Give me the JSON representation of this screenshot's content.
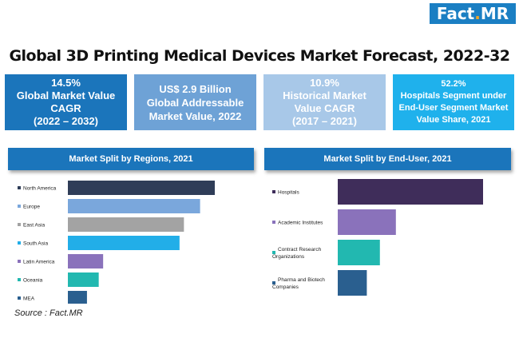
{
  "logo": {
    "part1": "Fact",
    "dot": ".",
    "part2": "MR"
  },
  "title": "Global 3D Printing Medical Devices Market Forecast, 2022-32",
  "kpis": [
    {
      "lines": [
        "14.5%",
        "Global Market Value",
        "CAGR",
        "(2022 – 2032)"
      ],
      "color": "#1b75bb"
    },
    {
      "lines": [
        "US$ 2.9 Billion",
        "Global Addressable",
        "Market Value, 2022"
      ],
      "color": "#6ea2d6"
    },
    {
      "lines": [
        "10.9%",
        "Historical Market",
        "Value CAGR",
        "(2017 – 2021)"
      ],
      "color": "#a8c8e8"
    },
    {
      "lines": [
        "52.2%",
        "Hospitals Segment under",
        "End-User Segment Market",
        "Value Share, 2021"
      ],
      "color": "#1fb1ec"
    }
  ],
  "chart_data": [
    {
      "type": "bar",
      "orientation": "horizontal",
      "title": "Market Split by Regions, 2021",
      "categories": [
        "North America",
        "Europe",
        "East Asia",
        "South Asia",
        "Latin America",
        "Oceania",
        "MEA"
      ],
      "values": [
        100,
        90,
        79,
        76,
        24,
        21,
        13
      ],
      "colors": [
        "#2f3d58",
        "#7aa7dc",
        "#a3a3a3",
        "#22aee8",
        "#8a72bb",
        "#22b8b0",
        "#2a5f8f"
      ],
      "grid": false,
      "legend": "none"
    },
    {
      "type": "bar",
      "orientation": "horizontal",
      "title": "Market Split by End-User, 2021",
      "categories": [
        "Hospitals",
        "Academic Institutes",
        "Contract Research Organizations",
        "Pharma and Biotech Companies"
      ],
      "values": [
        100,
        40,
        29,
        20
      ],
      "colors": [
        "#3f2d5a",
        "#8a72bb",
        "#22b8b0",
        "#2a5f8f"
      ],
      "grid": false,
      "legend": "none"
    }
  ],
  "source": "Source : Fact.MR"
}
